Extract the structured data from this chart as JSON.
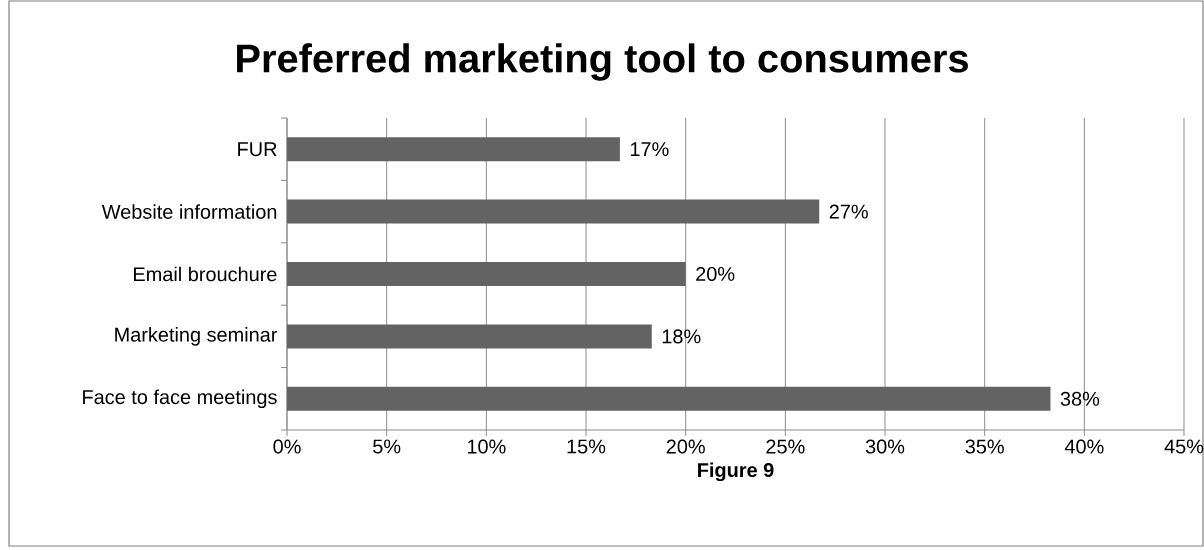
{
  "chart_data": {
    "type": "bar",
    "orientation": "horizontal",
    "title": "Preferred marketing tool to consumers",
    "xlabel": "Figure 9",
    "categories": [
      "FUR",
      "Website information",
      "Email brouchure",
      "Marketing seminar",
      "Face to face meetings"
    ],
    "values": [
      16.7,
      26.7,
      20.0,
      18.3,
      38.3
    ],
    "value_labels": [
      "17%",
      "27%",
      "20%",
      "18%",
      "38%"
    ],
    "color": "#636363",
    "xlim": [
      0,
      45
    ],
    "xticks": [
      {
        "value": 0,
        "label": "0%"
      },
      {
        "value": 5,
        "label": "5%"
      },
      {
        "value": 10,
        "label": "10%"
      },
      {
        "value": 15,
        "label": "15%"
      },
      {
        "value": 20,
        "label": "20%"
      },
      {
        "value": 25,
        "label": "25%"
      },
      {
        "value": 30,
        "label": "30%"
      },
      {
        "value": 35,
        "label": "35%"
      },
      {
        "value": 40,
        "label": "40%"
      },
      {
        "value": 45,
        "label": "45%"
      }
    ],
    "grid": "x"
  }
}
